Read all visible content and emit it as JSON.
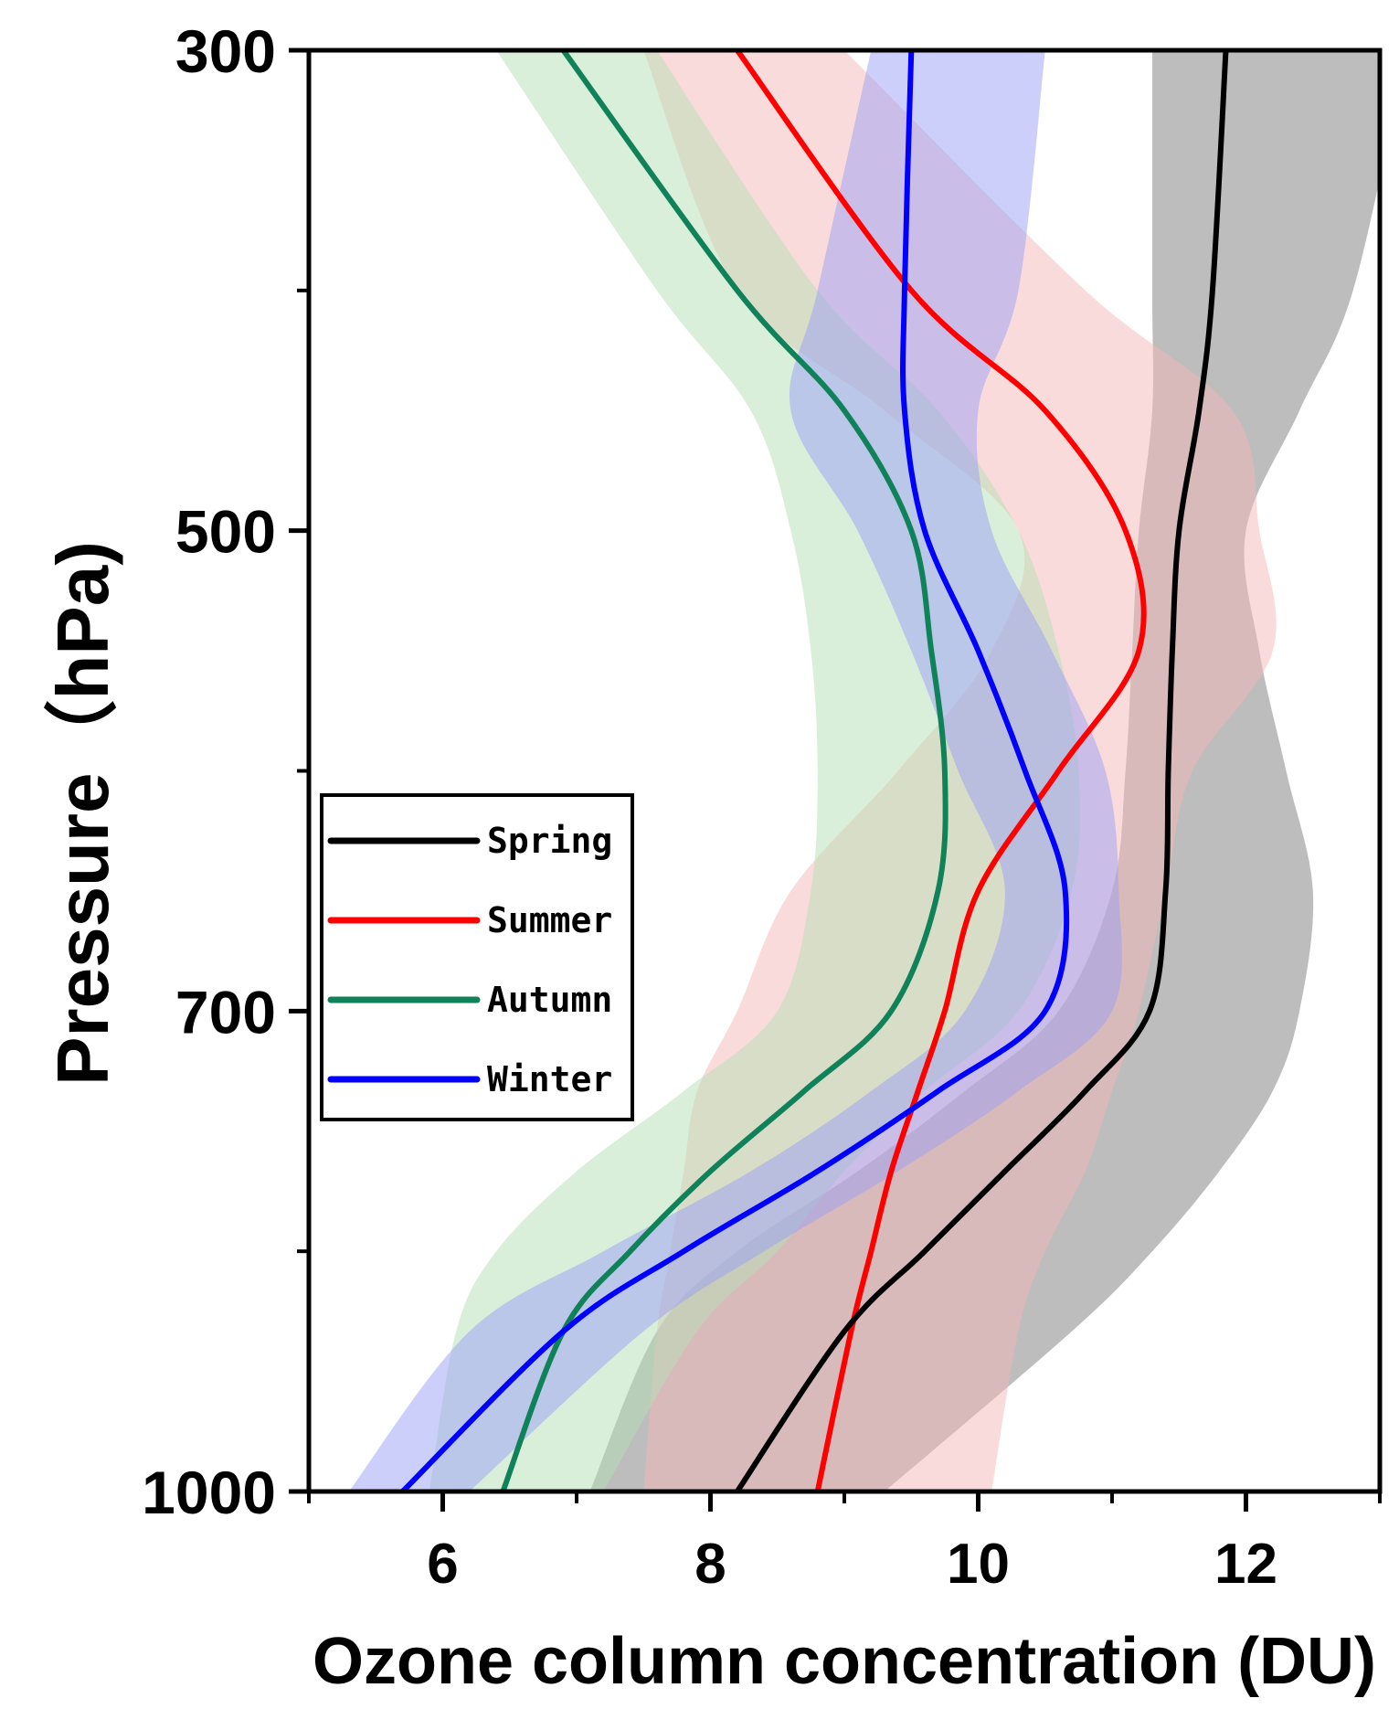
{
  "chart_data": {
    "type": "line",
    "title": "",
    "xlabel": "Ozone column concentration (DU)",
    "ylabel": "Pressure（hPa)",
    "xlim": [
      5,
      13
    ],
    "ylim": [
      1000,
      300
    ],
    "xticks": [
      6,
      8,
      10,
      12
    ],
    "yticks": [
      300,
      500,
      700,
      1000
    ],
    "legend_position": "left-middle",
    "y_levels": [
      300,
      400,
      450,
      500,
      550,
      600,
      650,
      700,
      750,
      800,
      850,
      900,
      1000
    ],
    "series": [
      {
        "name": "Spring",
        "color": "#000000",
        "band_color": "#9a9a9a",
        "values": [
          11.85,
          11.75,
          11.65,
          11.5,
          11.45,
          11.42,
          11.4,
          11.28,
          10.8,
          10.2,
          9.6,
          9.0,
          8.2
        ],
        "lower": [
          11.3,
          11.3,
          11.3,
          11.2,
          11.15,
          11.1,
          11.0,
          10.6,
          9.9,
          9.1,
          8.2,
          7.6,
          7.1
        ],
        "upper": [
          13.2,
          12.8,
          12.4,
          12.0,
          12.1,
          12.3,
          12.5,
          12.4,
          12.2,
          11.8,
          11.3,
          10.7,
          9.3
        ]
      },
      {
        "name": "Summer",
        "color": "#ff0000",
        "band_color": "#f6b8b8",
        "values": [
          8.2,
          9.5,
          10.5,
          11.1,
          11.2,
          10.6,
          10.0,
          9.75,
          9.55,
          9.35,
          9.2,
          9.05,
          8.8
        ],
        "lower": [
          7.5,
          8.2,
          9.3,
          10.3,
          10.1,
          9.4,
          8.6,
          8.2,
          7.9,
          7.8,
          7.7,
          7.6,
          7.5
        ],
        "upper": [
          9.0,
          10.8,
          11.9,
          12.1,
          12.2,
          11.6,
          11.4,
          11.2,
          11.0,
          10.8,
          10.5,
          10.3,
          10.1
        ]
      },
      {
        "name": "Autumn",
        "color": "#10825a",
        "band_color": "#b6dfb6",
        "values": [
          6.9,
          8.2,
          9.0,
          9.5,
          9.65,
          9.75,
          9.7,
          9.35,
          8.7,
          8.0,
          7.4,
          6.9,
          6.45
        ],
        "lower": [
          6.4,
          7.6,
          8.3,
          8.6,
          8.75,
          8.8,
          8.75,
          8.5,
          7.8,
          7.0,
          6.4,
          6.1,
          5.9
        ],
        "upper": [
          7.6,
          8.8,
          9.7,
          10.3,
          10.6,
          10.75,
          10.7,
          10.3,
          9.6,
          9.0,
          8.5,
          7.9,
          7.2
        ]
      },
      {
        "name": "Winter",
        "color": "#0000ff",
        "band_color": "#9aa0f5",
        "values": [
          9.5,
          9.45,
          9.45,
          9.6,
          10.0,
          10.35,
          10.65,
          10.5,
          9.7,
          8.8,
          7.8,
          6.9,
          5.7
        ],
        "lower": [
          9.2,
          8.8,
          8.6,
          9.1,
          9.5,
          9.85,
          10.2,
          9.9,
          9.2,
          8.3,
          7.2,
          6.2,
          5.3
        ],
        "upper": [
          10.5,
          10.3,
          10.0,
          10.1,
          10.55,
          10.95,
          11.05,
          11.0,
          10.3,
          9.4,
          8.4,
          7.5,
          6.2
        ]
      }
    ]
  }
}
